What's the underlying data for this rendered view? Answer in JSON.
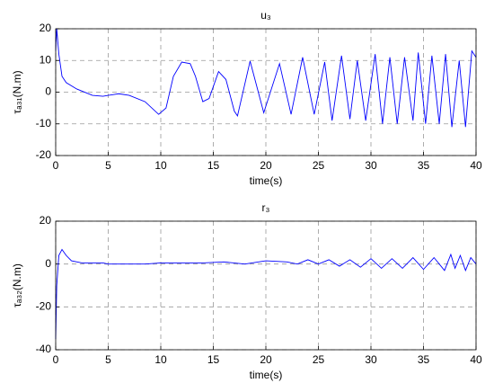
{
  "chart_data": [
    {
      "type": "line",
      "title": "u₃",
      "xlabel": "time(s)",
      "ylabel": "τₐ₃₁(N.m)",
      "x": [
        0,
        0.1,
        0.3,
        0.6,
        1,
        2,
        3.5,
        4.5,
        5,
        6,
        7,
        8.5,
        9.8,
        10.5,
        11.2,
        12,
        12.8,
        13.3,
        14,
        14.6,
        15.5,
        16.2,
        17,
        17.3,
        18.5,
        19.8,
        21.3,
        22.4,
        23.5,
        24.6,
        25.6,
        26.3,
        27.2,
        28,
        28.7,
        29.5,
        30.4,
        31.1,
        31.8,
        32.5,
        33.2,
        34,
        34.5,
        35.2,
        35.8,
        36.5,
        37.1,
        37.7,
        38.4,
        39,
        39.6,
        40
      ],
      "values": [
        13,
        20,
        12,
        5,
        3,
        1,
        -1,
        -1.3,
        -1,
        -0.5,
        -1,
        -3,
        -7,
        -5,
        5,
        9.5,
        9,
        5,
        -3,
        -2,
        6.5,
        4,
        -6,
        -7.5,
        9.8,
        -6.5,
        9,
        -7,
        11,
        -7,
        9.5,
        -9,
        11.5,
        -8.5,
        10,
        -9,
        12,
        -10,
        11,
        -10,
        11,
        -9,
        12.5,
        -10,
        11.5,
        -10,
        12,
        -11,
        10,
        -11,
        13,
        11
      ],
      "color": "#0000ff",
      "xlim": [
        0,
        40
      ],
      "xticks": [
        0,
        5,
        10,
        15,
        20,
        25,
        30,
        35,
        40
      ],
      "ylim": [
        -20,
        20
      ],
      "yticks": [
        -20,
        -10,
        0,
        10,
        20
      ],
      "grid": true
    },
    {
      "type": "line",
      "title": "r₃",
      "xlabel": "time(s)",
      "ylabel": "τₐ₃₂(N.m)",
      "x": [
        0,
        0.1,
        0.3,
        0.6,
        1,
        1.5,
        2.5,
        4.5,
        5,
        8.5,
        10,
        12,
        14,
        16,
        18,
        20,
        22,
        23,
        24,
        25,
        26,
        27,
        28,
        29,
        30,
        31,
        32,
        33,
        34,
        35,
        36,
        37,
        37.6,
        38,
        38.5,
        39,
        39.5,
        40
      ],
      "values": [
        -35,
        -10,
        4,
        6.8,
        4,
        1.5,
        0.5,
        0.5,
        0,
        0,
        0.5,
        0.5,
        0.5,
        1,
        0,
        1.5,
        1,
        0,
        2,
        0,
        2,
        -1,
        2,
        -1.5,
        2.5,
        -2,
        2.5,
        -2,
        3,
        -2.5,
        3,
        -3,
        4.5,
        -2,
        4,
        -3,
        3,
        0
      ],
      "color": "#0000ff",
      "xlim": [
        0,
        40
      ],
      "xticks": [
        0,
        5,
        10,
        15,
        20,
        25,
        30,
        35,
        40
      ],
      "ylim": [
        -40,
        20
      ],
      "yticks": [
        -40,
        -20,
        0,
        20
      ],
      "grid": true
    }
  ]
}
